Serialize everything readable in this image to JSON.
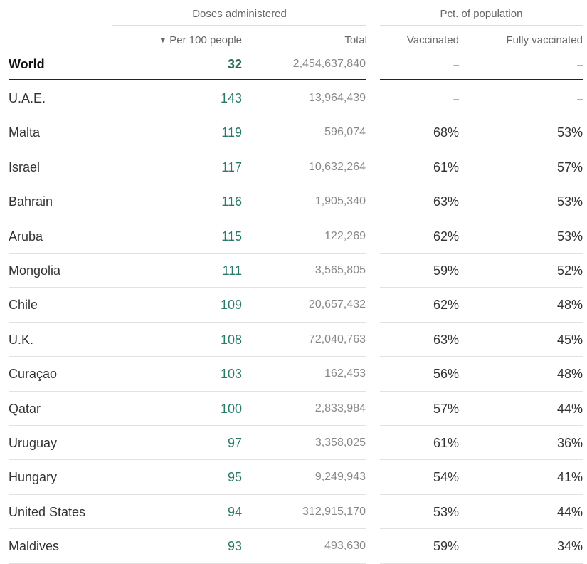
{
  "headers": {
    "group_doses": "Doses administered",
    "group_pct": "Pct. of population",
    "sort_arrow": "▼",
    "per100": "Per 100 people",
    "total": "Total",
    "vaccinated": "Vaccinated",
    "fully": "Fully vaccinated"
  },
  "world": {
    "name": "World",
    "per100": "32",
    "total": "2,454,637,840",
    "vaccinated": "–",
    "fully": "–"
  },
  "rows": [
    {
      "name": "U.A.E.",
      "per100": "143",
      "total": "13,964,439",
      "vaccinated": "–",
      "fully": "–"
    },
    {
      "name": "Malta",
      "per100": "119",
      "total": "596,074",
      "vaccinated": "68%",
      "fully": "53%"
    },
    {
      "name": "Israel",
      "per100": "117",
      "total": "10,632,264",
      "vaccinated": "61%",
      "fully": "57%"
    },
    {
      "name": "Bahrain",
      "per100": "116",
      "total": "1,905,340",
      "vaccinated": "63%",
      "fully": "53%"
    },
    {
      "name": "Aruba",
      "per100": "115",
      "total": "122,269",
      "vaccinated": "62%",
      "fully": "53%"
    },
    {
      "name": "Mongolia",
      "per100": "111",
      "total": "3,565,805",
      "vaccinated": "59%",
      "fully": "52%"
    },
    {
      "name": "Chile",
      "per100": "109",
      "total": "20,657,432",
      "vaccinated": "62%",
      "fully": "48%"
    },
    {
      "name": "U.K.",
      "per100": "108",
      "total": "72,040,763",
      "vaccinated": "63%",
      "fully": "45%"
    },
    {
      "name": "Curaçao",
      "per100": "103",
      "total": "162,453",
      "vaccinated": "56%",
      "fully": "48%"
    },
    {
      "name": "Qatar",
      "per100": "100",
      "total": "2,833,984",
      "vaccinated": "57%",
      "fully": "44%"
    },
    {
      "name": "Uruguay",
      "per100": "97",
      "total": "3,358,025",
      "vaccinated": "61%",
      "fully": "36%"
    },
    {
      "name": "Hungary",
      "per100": "95",
      "total": "9,249,943",
      "vaccinated": "54%",
      "fully": "41%"
    },
    {
      "name": "United States",
      "per100": "94",
      "total": "312,915,170",
      "vaccinated": "53%",
      "fully": "44%"
    },
    {
      "name": "Maldives",
      "per100": "93",
      "total": "493,630",
      "vaccinated": "59%",
      "fully": "34%"
    }
  ],
  "colors": {
    "per100_text": "#2a7a6a",
    "rule": "#e2e2e2",
    "world_rule": "#222222"
  }
}
